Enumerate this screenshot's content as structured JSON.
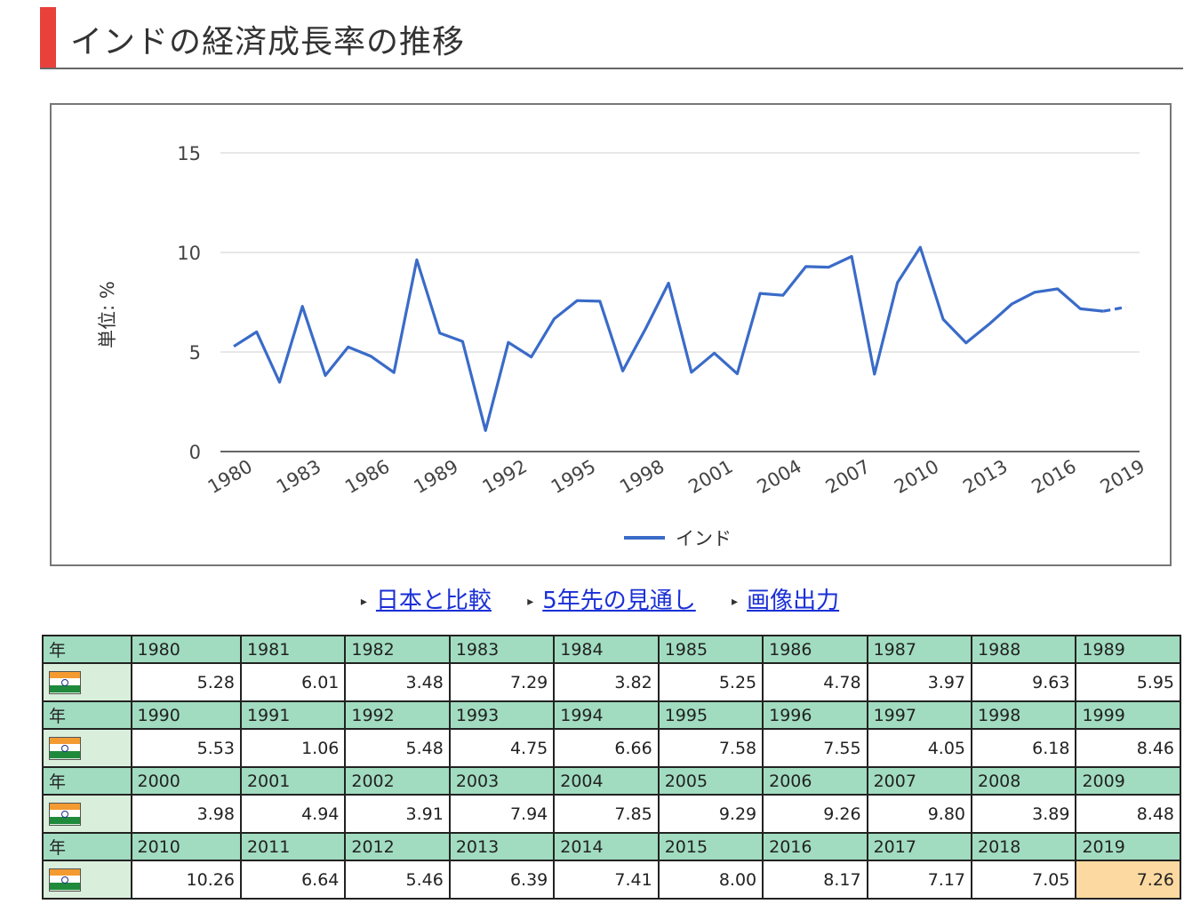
{
  "page": {
    "title": "インドの経済成長率の推移"
  },
  "chart_data": {
    "type": "line",
    "title": "",
    "xlabel": "",
    "ylabel": "単位: %",
    "ylim": [
      0,
      15
    ],
    "yticks": [
      0,
      5,
      10,
      15
    ],
    "xticks": [
      "1980",
      "1983",
      "1986",
      "1989",
      "1992",
      "1995",
      "1998",
      "2001",
      "2004",
      "2007",
      "2010",
      "2013",
      "2016",
      "2019"
    ],
    "x": [
      1980,
      1981,
      1982,
      1983,
      1984,
      1985,
      1986,
      1987,
      1988,
      1989,
      1990,
      1991,
      1992,
      1993,
      1994,
      1995,
      1996,
      1997,
      1998,
      1999,
      2000,
      2001,
      2002,
      2003,
      2004,
      2005,
      2006,
      2007,
      2008,
      2009,
      2010,
      2011,
      2012,
      2013,
      2014,
      2015,
      2016,
      2017,
      2018,
      2019
    ],
    "series": [
      {
        "name": "インド",
        "color": "#3a6bc8",
        "values": [
          5.28,
          6.01,
          3.48,
          7.29,
          3.82,
          5.25,
          4.78,
          3.97,
          9.63,
          5.95,
          5.53,
          1.06,
          5.48,
          4.75,
          6.66,
          7.58,
          7.55,
          4.05,
          6.18,
          8.46,
          3.98,
          4.94,
          3.91,
          7.94,
          7.85,
          9.29,
          9.26,
          9.8,
          3.89,
          8.48,
          10.26,
          6.64,
          5.46,
          6.39,
          7.41,
          8.0,
          8.17,
          7.17,
          7.05,
          7.26
        ],
        "dashed_from": 2018
      }
    ],
    "grid": true,
    "legend": "bottom"
  },
  "links": [
    {
      "label": "日本と比較"
    },
    {
      "label": "5年先の見通し"
    },
    {
      "label": "画像出力"
    }
  ],
  "table": {
    "year_header": "年",
    "flag_icon": "india-flag-icon",
    "highlight_year": "2019",
    "blocks": [
      {
        "years": [
          "1980",
          "1981",
          "1982",
          "1983",
          "1984",
          "1985",
          "1986",
          "1987",
          "1988",
          "1989"
        ],
        "values": [
          "5.28",
          "6.01",
          "3.48",
          "7.29",
          "3.82",
          "5.25",
          "4.78",
          "3.97",
          "9.63",
          "5.95"
        ]
      },
      {
        "years": [
          "1990",
          "1991",
          "1992",
          "1993",
          "1994",
          "1995",
          "1996",
          "1997",
          "1998",
          "1999"
        ],
        "values": [
          "5.53",
          "1.06",
          "5.48",
          "4.75",
          "6.66",
          "7.58",
          "7.55",
          "4.05",
          "6.18",
          "8.46"
        ]
      },
      {
        "years": [
          "2000",
          "2001",
          "2002",
          "2003",
          "2004",
          "2005",
          "2006",
          "2007",
          "2008",
          "2009"
        ],
        "values": [
          "3.98",
          "4.94",
          "3.91",
          "7.94",
          "7.85",
          "9.29",
          "9.26",
          "9.80",
          "3.89",
          "8.48"
        ]
      },
      {
        "years": [
          "2010",
          "2011",
          "2012",
          "2013",
          "2014",
          "2015",
          "2016",
          "2017",
          "2018",
          "2019"
        ],
        "values": [
          "10.26",
          "6.64",
          "5.46",
          "6.39",
          "7.41",
          "8.00",
          "8.17",
          "7.17",
          "7.05",
          "7.26"
        ]
      }
    ]
  }
}
